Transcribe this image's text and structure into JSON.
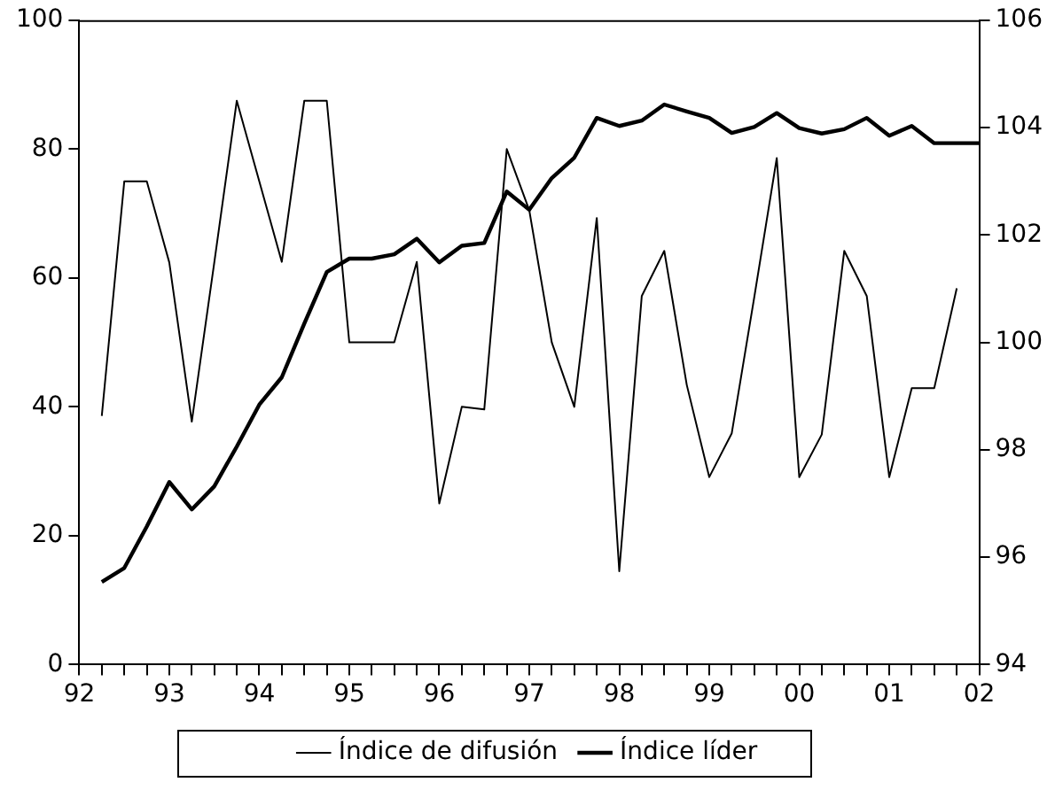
{
  "chart_data": {
    "type": "line",
    "series": [
      {
        "name": "Índice de difusión",
        "color": "#000000",
        "x": [
          "1992-04",
          "1992-07",
          "1992-10",
          "1993-01",
          "1993-04",
          "1993-07",
          "1993-10",
          "1994-01",
          "1994-04",
          "1994-07",
          "1994-10",
          "1995-01",
          "1995-04",
          "1995-07",
          "1995-10",
          "1996-01",
          "1996-04",
          "1996-07",
          "1996-10",
          "1997-01",
          "1997-04",
          "1997-07",
          "1997-10",
          "1998-01",
          "1998-04",
          "1998-07",
          "1998-10",
          "1999-01",
          "1999-04",
          "1999-07",
          "1999-10",
          "2000-01",
          "2000-04",
          "2000-07",
          "2000-10",
          "2001-01",
          "2001-04",
          "2001-07",
          "2001-10"
        ],
        "values": [
          38.6,
          75,
          75,
          62.4,
          37.7,
          62.4,
          87.5,
          75,
          62.5,
          87.5,
          87.5,
          50,
          50,
          50,
          62.5,
          25,
          40,
          39.6,
          80,
          70.5,
          50,
          40,
          69.3,
          14.5,
          57.2,
          64.2,
          43.4,
          29.1,
          35.9,
          57,
          78.6,
          29.1,
          35.7,
          64.2,
          57.2,
          29.1,
          42.9,
          42.9,
          58.4
        ]
      },
      {
        "name": "Índice líder",
        "color": "#000000",
        "axis": "y2",
        "x": [
          "1992-04",
          "1992-07",
          "1992-10",
          "1993-01",
          "1993-04",
          "1993-07",
          "1993-10",
          "1994-01",
          "1994-04",
          "1994-07",
          "1994-10",
          "1995-01",
          "1995-04",
          "1995-07",
          "1995-10",
          "1996-01",
          "1996-04",
          "1996-07",
          "1996-10",
          "1997-01",
          "1997-04",
          "1997-07",
          "1997-10",
          "1998-01",
          "1998-04",
          "1998-07",
          "1998-10",
          "1999-01",
          "1999-04",
          "1999-07",
          "1999-10",
          "2000-01",
          "2000-04",
          "2000-07",
          "2000-10",
          "2001-01",
          "2001-04",
          "2001-07",
          "2001-10",
          "2002-01"
        ],
        "values": [
          95.54,
          95.8,
          96.57,
          97.4,
          96.89,
          97.32,
          98.06,
          98.84,
          99.35,
          100.35,
          101.31,
          101.56,
          101.56,
          101.64,
          101.93,
          101.49,
          101.8,
          101.85,
          102.81,
          102.47,
          103.06,
          103.44,
          104.18,
          104.03,
          104.13,
          104.43,
          104.3,
          104.18,
          103.9,
          104.01,
          104.27,
          103.99,
          103.89,
          103.97,
          104.18,
          103.85,
          104.03,
          103.71,
          103.71,
          103.71
        ]
      }
    ],
    "xlim": [
      "1992-01",
      "2002-01"
    ],
    "xticks": [
      {
        "value": "1992",
        "label": "92"
      },
      {
        "value": "1992-04",
        "label": null
      },
      {
        "value": "1992-07",
        "label": null
      },
      {
        "value": "1992-10",
        "label": null
      },
      {
        "value": "1993",
        "label": "93"
      },
      {
        "value": "1993-04",
        "label": null
      },
      {
        "value": "1993-07",
        "label": null
      },
      {
        "value": "1993-10",
        "label": null
      },
      {
        "value": "1994",
        "label": "94"
      },
      {
        "value": "1994-04",
        "label": null
      },
      {
        "value": "1994-07",
        "label": null
      },
      {
        "value": "1994-10",
        "label": null
      },
      {
        "value": "1995",
        "label": "95"
      },
      {
        "value": "1995-04",
        "label": null
      },
      {
        "value": "1995-07",
        "label": null
      },
      {
        "value": "1995-10",
        "label": null
      },
      {
        "value": "1996",
        "label": "96"
      },
      {
        "value": "1996-04",
        "label": null
      },
      {
        "value": "1996-07",
        "label": null
      },
      {
        "value": "1996-10",
        "label": null
      },
      {
        "value": "1997",
        "label": "97"
      },
      {
        "value": "1997-04",
        "label": null
      },
      {
        "value": "1997-07",
        "label": null
      },
      {
        "value": "1997-10",
        "label": null
      },
      {
        "value": "1998",
        "label": "98"
      },
      {
        "value": "1998-04",
        "label": null
      },
      {
        "value": "1998-07",
        "label": null
      },
      {
        "value": "1998-10",
        "label": null
      },
      {
        "value": "1999",
        "label": "99"
      },
      {
        "value": "1999-04",
        "label": null
      },
      {
        "value": "1999-07",
        "label": null
      },
      {
        "value": "1999-10",
        "label": null
      },
      {
        "value": "2000",
        "label": "00"
      },
      {
        "value": "2000-04",
        "label": null
      },
      {
        "value": "2000-07",
        "label": null
      },
      {
        "value": "2000-10",
        "label": null
      },
      {
        "value": "2001",
        "label": "01"
      },
      {
        "value": "2001-04",
        "label": null
      },
      {
        "value": "2001-07",
        "label": null
      },
      {
        "value": "2001-10",
        "label": null
      },
      {
        "value": "2002",
        "label": "02"
      }
    ],
    "ylim": [
      0,
      100
    ],
    "yticks": [
      0,
      20,
      40,
      60,
      80,
      100
    ],
    "y2lim": [
      94,
      106
    ],
    "y2ticks": [
      94,
      96,
      98,
      100,
      102,
      104,
      106
    ],
    "grid": false,
    "legend": "bottom",
    "marker": "none",
    "line_style": "solid"
  }
}
